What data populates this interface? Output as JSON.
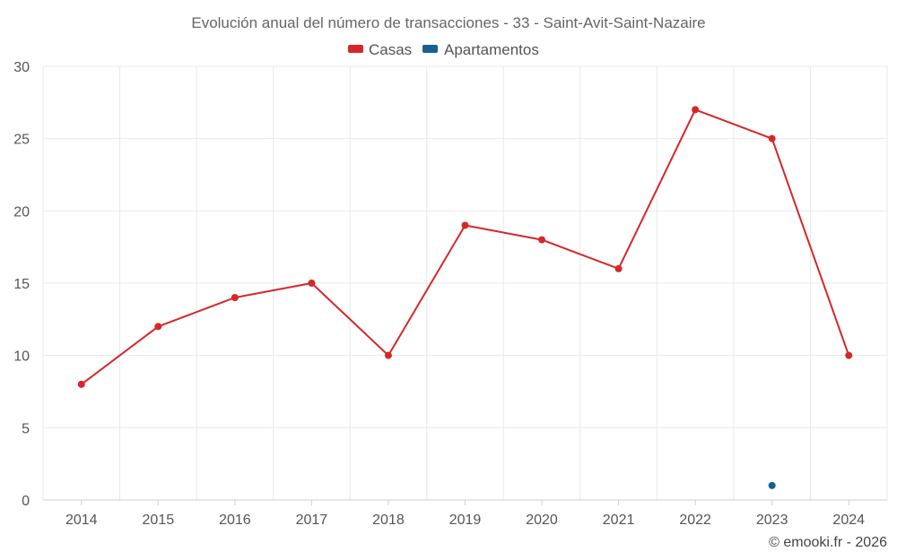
{
  "colors": {
    "casas": "#d62728",
    "apartamentos": "#1a5f8f"
  },
  "chart_data": {
    "type": "line",
    "title": "Evolución anual del número de transacciones - 33 - Saint-Avit-Saint-Nazaire",
    "x": [
      2014,
      2015,
      2016,
      2017,
      2018,
      2019,
      2020,
      2021,
      2022,
      2023,
      2024
    ],
    "series": [
      {
        "name": "Casas",
        "color": "#d62728",
        "values": [
          8,
          12,
          14,
          15,
          10,
          19,
          18,
          16,
          27,
          25,
          10
        ]
      },
      {
        "name": "Apartamentos",
        "color": "#1a5f8f",
        "values": [
          null,
          null,
          null,
          null,
          null,
          null,
          null,
          null,
          null,
          1,
          null
        ]
      }
    ],
    "ylim": [
      0,
      30
    ],
    "yticks": [
      0,
      5,
      10,
      15,
      20,
      25,
      30
    ],
    "xlabel": "",
    "ylabel": "",
    "legend": "top-center",
    "grid": true
  },
  "credit": "© emooki.fr - 2026"
}
